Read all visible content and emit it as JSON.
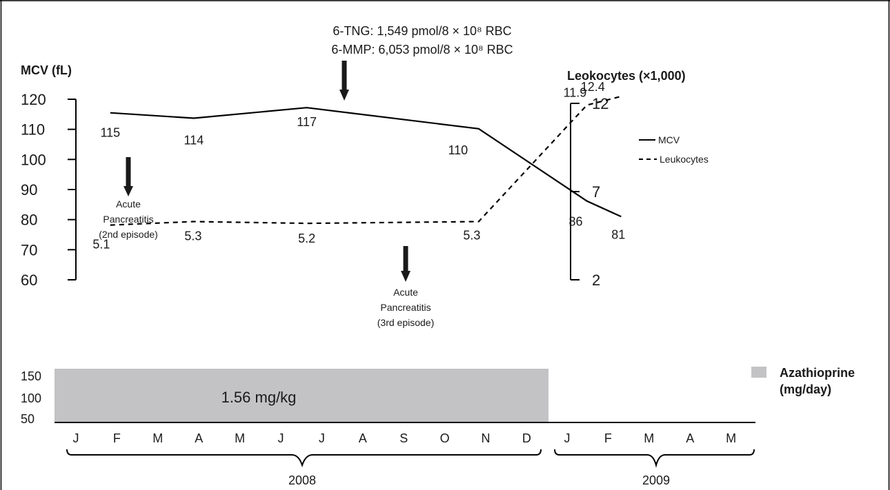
{
  "chart_data": [
    {
      "type": "line",
      "ylabel_left": "MCV (fL)",
      "ylabel_right": "Leokocytes (×1,000)",
      "y_left": {
        "min": 60,
        "max": 120,
        "ticks": [
          120,
          110,
          100,
          90,
          80,
          70,
          60
        ]
      },
      "y_right": {
        "min": 2,
        "max": 12,
        "ticks": [
          12,
          7,
          2
        ]
      },
      "series": [
        {
          "name": "MCV",
          "axis": "left",
          "style": "solid",
          "labels": [
            "115",
            "114",
            "117",
            "110",
            "86",
            "81"
          ],
          "points": [
            {
              "x": 2008.11,
              "y": 115.5
            },
            {
              "x": 2008.28,
              "y": 113.7
            },
            {
              "x": 2008.51,
              "y": 117.2
            },
            {
              "x": 2008.86,
              "y": 110.2
            },
            {
              "x": 2009.08,
              "y": 86.2
            },
            {
              "x": 2009.15,
              "y": 81.0
            }
          ]
        },
        {
          "name": "Leukocytes",
          "axis": "right",
          "style": "dashed",
          "labels": [
            "5.1",
            "5.3",
            "5.2",
            "5.3",
            "11.9",
            "12.4"
          ],
          "points": [
            {
              "x": 2008.11,
              "y": 5.1
            },
            {
              "x": 2008.28,
              "y": 5.3
            },
            {
              "x": 2008.51,
              "y": 5.2
            },
            {
              "x": 2008.86,
              "y": 5.3
            },
            {
              "x": 2009.08,
              "y": 11.9
            },
            {
              "x": 2009.15,
              "y": 12.4
            }
          ]
        }
      ],
      "legend": {
        "placement": "right",
        "entries": [
          {
            "label": "MCV",
            "style": "solid"
          },
          {
            "label": "Leukocytes",
            "style": "dashed"
          }
        ]
      },
      "annotations": {
        "tng": "6-TNG: 1,549 pmol/8 × 10⁸ RBC",
        "mmp": "6-MMP: 6,053 pmol/8 × 10⁸ RBC",
        "ap2_line1": "Acute",
        "ap2_line2": "Pancreatitis",
        "ap2_line3": "(2nd episode)",
        "ap3_line1": "Acute",
        "ap3_line2": "Pancreatitis",
        "ap3_line3": "(3rd episode)"
      }
    },
    {
      "type": "bar",
      "ylabel": "Azathioprine (mg/day)",
      "legend_line1": "Azathioprine",
      "legend_line2": "(mg/day)",
      "y_ticks": [
        150,
        100,
        50
      ],
      "bar": {
        "start": "2008-01",
        "end": "2008-12",
        "value": 150,
        "label": "1.56 mg/kg",
        "color": "#c3c3c5"
      },
      "months_2008": [
        "J",
        "F",
        "M",
        "A",
        "M",
        "J",
        "J",
        "A",
        "S",
        "O",
        "N",
        "D"
      ],
      "months_2009": [
        "J",
        "F",
        "M",
        "A",
        "M"
      ],
      "years": [
        "2008",
        "2009"
      ]
    }
  ]
}
